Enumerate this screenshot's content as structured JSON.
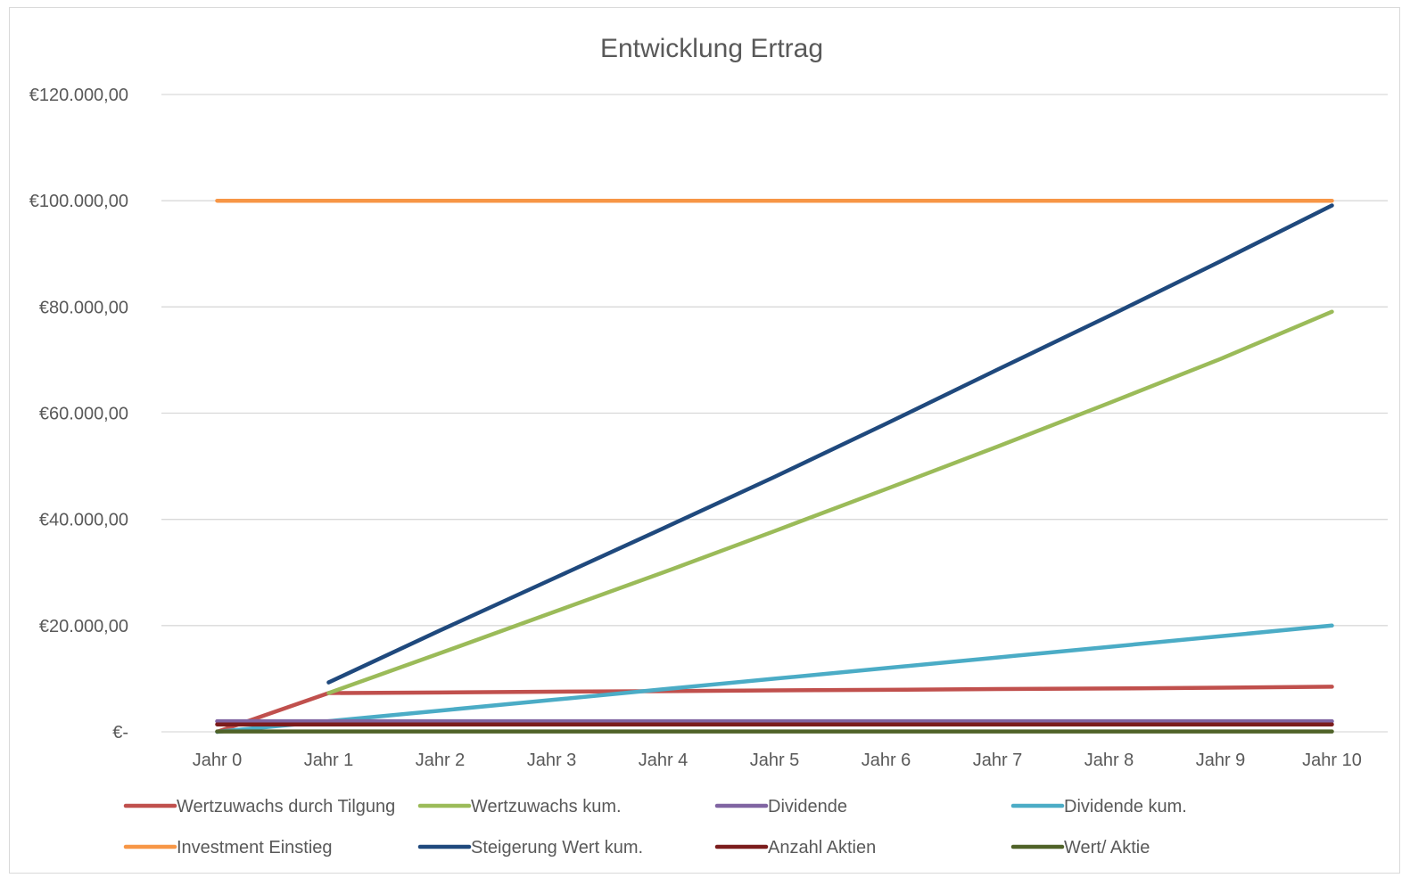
{
  "chart_data": {
    "type": "line",
    "title": "Entwicklung Ertrag",
    "xlabel": "",
    "ylabel": "",
    "categories": [
      "Jahr 0",
      "Jahr 1",
      "Jahr 2",
      "Jahr 3",
      "Jahr 4",
      "Jahr 5",
      "Jahr 6",
      "Jahr 7",
      "Jahr 8",
      "Jahr 9",
      "Jahr 10"
    ],
    "ylim": [
      0,
      120000
    ],
    "yticks": [
      {
        "value": 0,
        "label": "€-"
      },
      {
        "value": 20000,
        "label": "€20.000,00"
      },
      {
        "value": 40000,
        "label": "€40.000,00"
      },
      {
        "value": 60000,
        "label": "€60.000,00"
      },
      {
        "value": 80000,
        "label": "€80.000,00"
      },
      {
        "value": 100000,
        "label": "€100.000,00"
      },
      {
        "value": 120000,
        "label": "€120.000,00"
      }
    ],
    "grid": true,
    "legend_position": "bottom",
    "series": [
      {
        "name": "Wertzuwachs durch Tilgung",
        "color": "#c0504d",
        "values": [
          0,
          7300,
          7400,
          7550,
          7650,
          7800,
          7900,
          8050,
          8150,
          8300,
          8500
        ]
      },
      {
        "name": "Wertzuwachs kum.",
        "color": "#9bbb59",
        "values": [
          null,
          7300,
          14800,
          22400,
          30000,
          37800,
          45700,
          53700,
          61900,
          70200,
          79100
        ]
      },
      {
        "name": "Dividende",
        "color": "#8064a2",
        "values": [
          2000,
          2000,
          2000,
          2000,
          2000,
          2000,
          2000,
          2000,
          2000,
          2000,
          2000
        ]
      },
      {
        "name": "Dividende kum.",
        "color": "#4bacc6",
        "values": [
          0,
          2000,
          4000,
          6000,
          8000,
          10000,
          12000,
          14000,
          16000,
          18000,
          20000
        ]
      },
      {
        "name": "Investment Einstieg",
        "color": "#f79646",
        "values": [
          100000,
          100000,
          100000,
          100000,
          100000,
          100000,
          100000,
          100000,
          100000,
          100000,
          100000
        ]
      },
      {
        "name": "Steigerung Wert kum.",
        "color": "#1f497d",
        "values": [
          null,
          9300,
          19100,
          28700,
          38300,
          48000,
          58000,
          68200,
          78300,
          88600,
          99100
        ]
      },
      {
        "name": "Anzahl Aktien",
        "color": "#7b1c1c",
        "values": [
          1400,
          1400,
          1400,
          1400,
          1400,
          1400,
          1400,
          1400,
          1400,
          1400,
          1400
        ]
      },
      {
        "name": "Wert/ Aktie",
        "color": "#4f6228",
        "values": [
          70,
          70,
          70,
          70,
          70,
          70,
          70,
          70,
          70,
          70,
          70
        ]
      }
    ]
  }
}
